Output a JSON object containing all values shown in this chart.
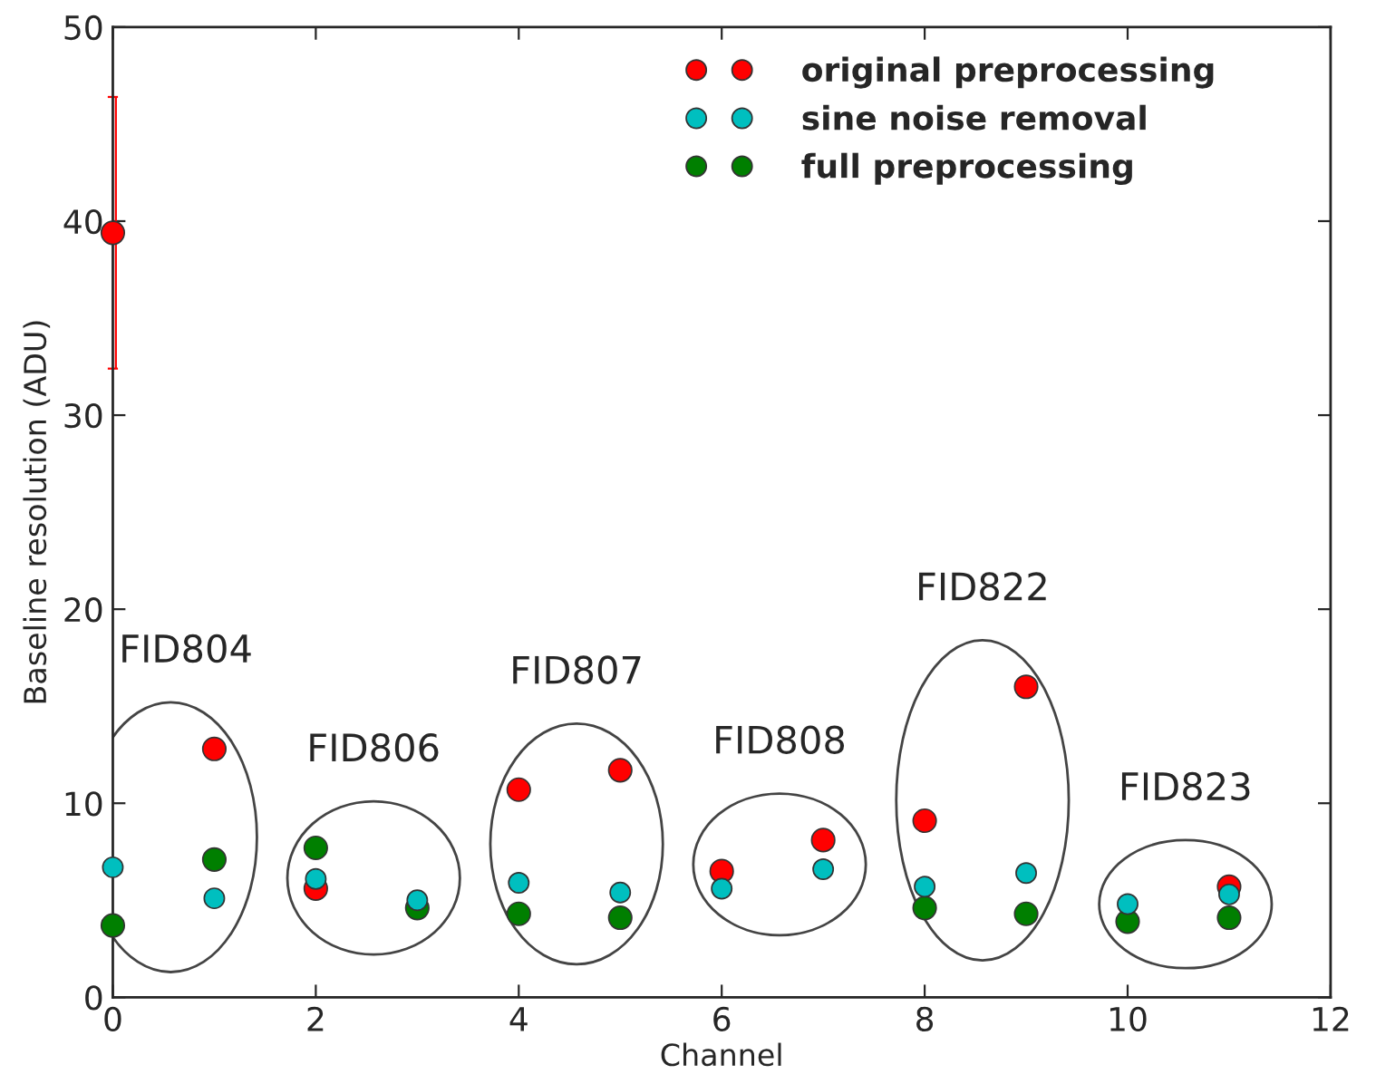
{
  "chart_data": {
    "type": "scatter",
    "xlabel": "Channel",
    "ylabel": "Baseline resolution (ADU)",
    "x": [
      0,
      1,
      2,
      3,
      4,
      5,
      6,
      7,
      8,
      9,
      10,
      11
    ],
    "series": [
      {
        "name": "original preprocessing",
        "color": "#ff0000",
        "values": [
          39.4,
          12.8,
          5.6,
          null,
          10.7,
          11.7,
          6.5,
          8.1,
          9.1,
          16.0,
          null,
          5.7
        ],
        "errors": [
          [
            32.4,
            46.4
          ],
          null,
          null,
          null,
          null,
          null,
          null,
          null,
          null,
          null,
          null,
          null
        ]
      },
      {
        "name": "sine noise removal",
        "color": "#00bfbf",
        "values": [
          6.7,
          5.1,
          6.1,
          5.0,
          5.9,
          5.4,
          5.6,
          6.6,
          5.7,
          6.4,
          4.8,
          5.3
        ]
      },
      {
        "name": "full preprocessing",
        "color": "#007f00",
        "values": [
          3.7,
          7.1,
          7.7,
          4.6,
          4.3,
          4.1,
          null,
          null,
          4.6,
          4.3,
          3.9,
          4.1
        ]
      }
    ],
    "annotations": [
      "FID804",
      "FID806",
      "FID807",
      "FID808",
      "FID822",
      "FID823"
    ],
    "xlim": [
      0,
      12
    ],
    "xticks": [
      0,
      2,
      4,
      6,
      8,
      10,
      12
    ],
    "ylim": [
      0,
      50
    ],
    "yticks": [
      0,
      10,
      20,
      30,
      40,
      50
    ],
    "grid": false,
    "legend": "top right",
    "marker": "circle"
  }
}
